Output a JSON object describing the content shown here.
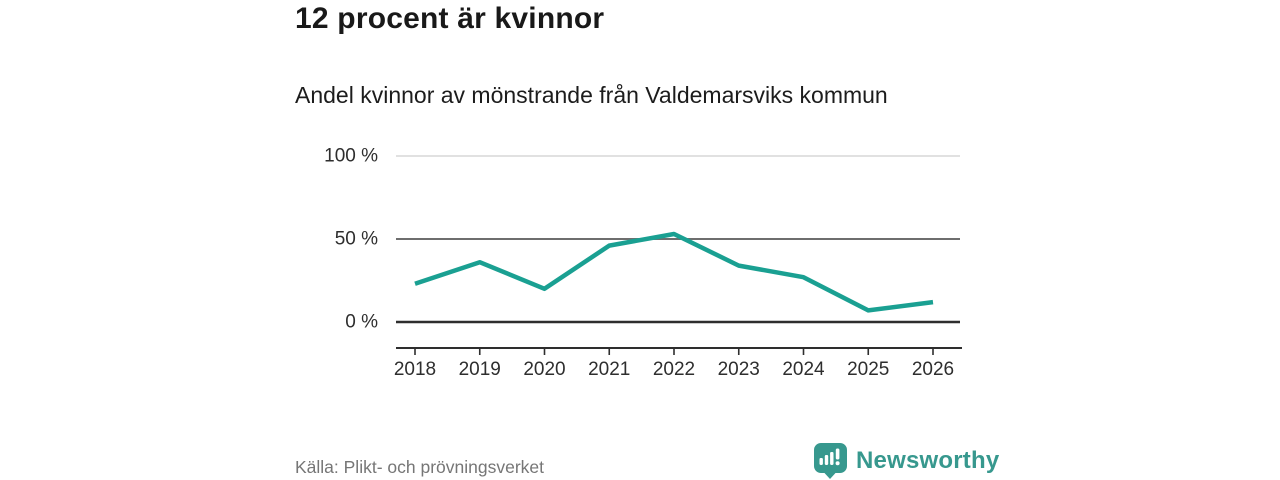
{
  "header": {
    "title": "12 procent är kvinnor",
    "subtitle": "Andel kvinnor av mönstrande från Valdemarsviks kommun"
  },
  "chart_data": {
    "type": "line",
    "title": "12 procent är kvinnor",
    "subtitle": "Andel kvinnor av mönstrande från Valdemarsviks kommun",
    "x": [
      2018,
      2019,
      2020,
      2021,
      2022,
      2023,
      2024,
      2025,
      2026
    ],
    "series": [
      {
        "name": "Andel kvinnor av mönstrande",
        "values": [
          23,
          36,
          20,
          46,
          53,
          34,
          27,
          7,
          12
        ]
      }
    ],
    "unit": "%",
    "xlabel": "",
    "ylabel": "",
    "ylim": [
      0,
      100
    ],
    "yticks": [
      {
        "value": 0,
        "label": "0 %",
        "color": "#2e2e2e",
        "width": 2.4
      },
      {
        "value": 50,
        "label": "50 %",
        "color": "#6e6e6e",
        "width": 2
      },
      {
        "value": 100,
        "label": "100 %",
        "color": "#e1e1e1",
        "width": 2
      }
    ],
    "grid": "horizontal",
    "legend": "none",
    "line_color": "#1aa092",
    "axis_color": "#2e2e2e"
  },
  "footer": {
    "source": "Källa: Plikt- och prövningsverket",
    "brand": "Newsworthy",
    "brand_color": "#37988e",
    "logo_icon": "bar-chart-speech-bubble-icon"
  }
}
